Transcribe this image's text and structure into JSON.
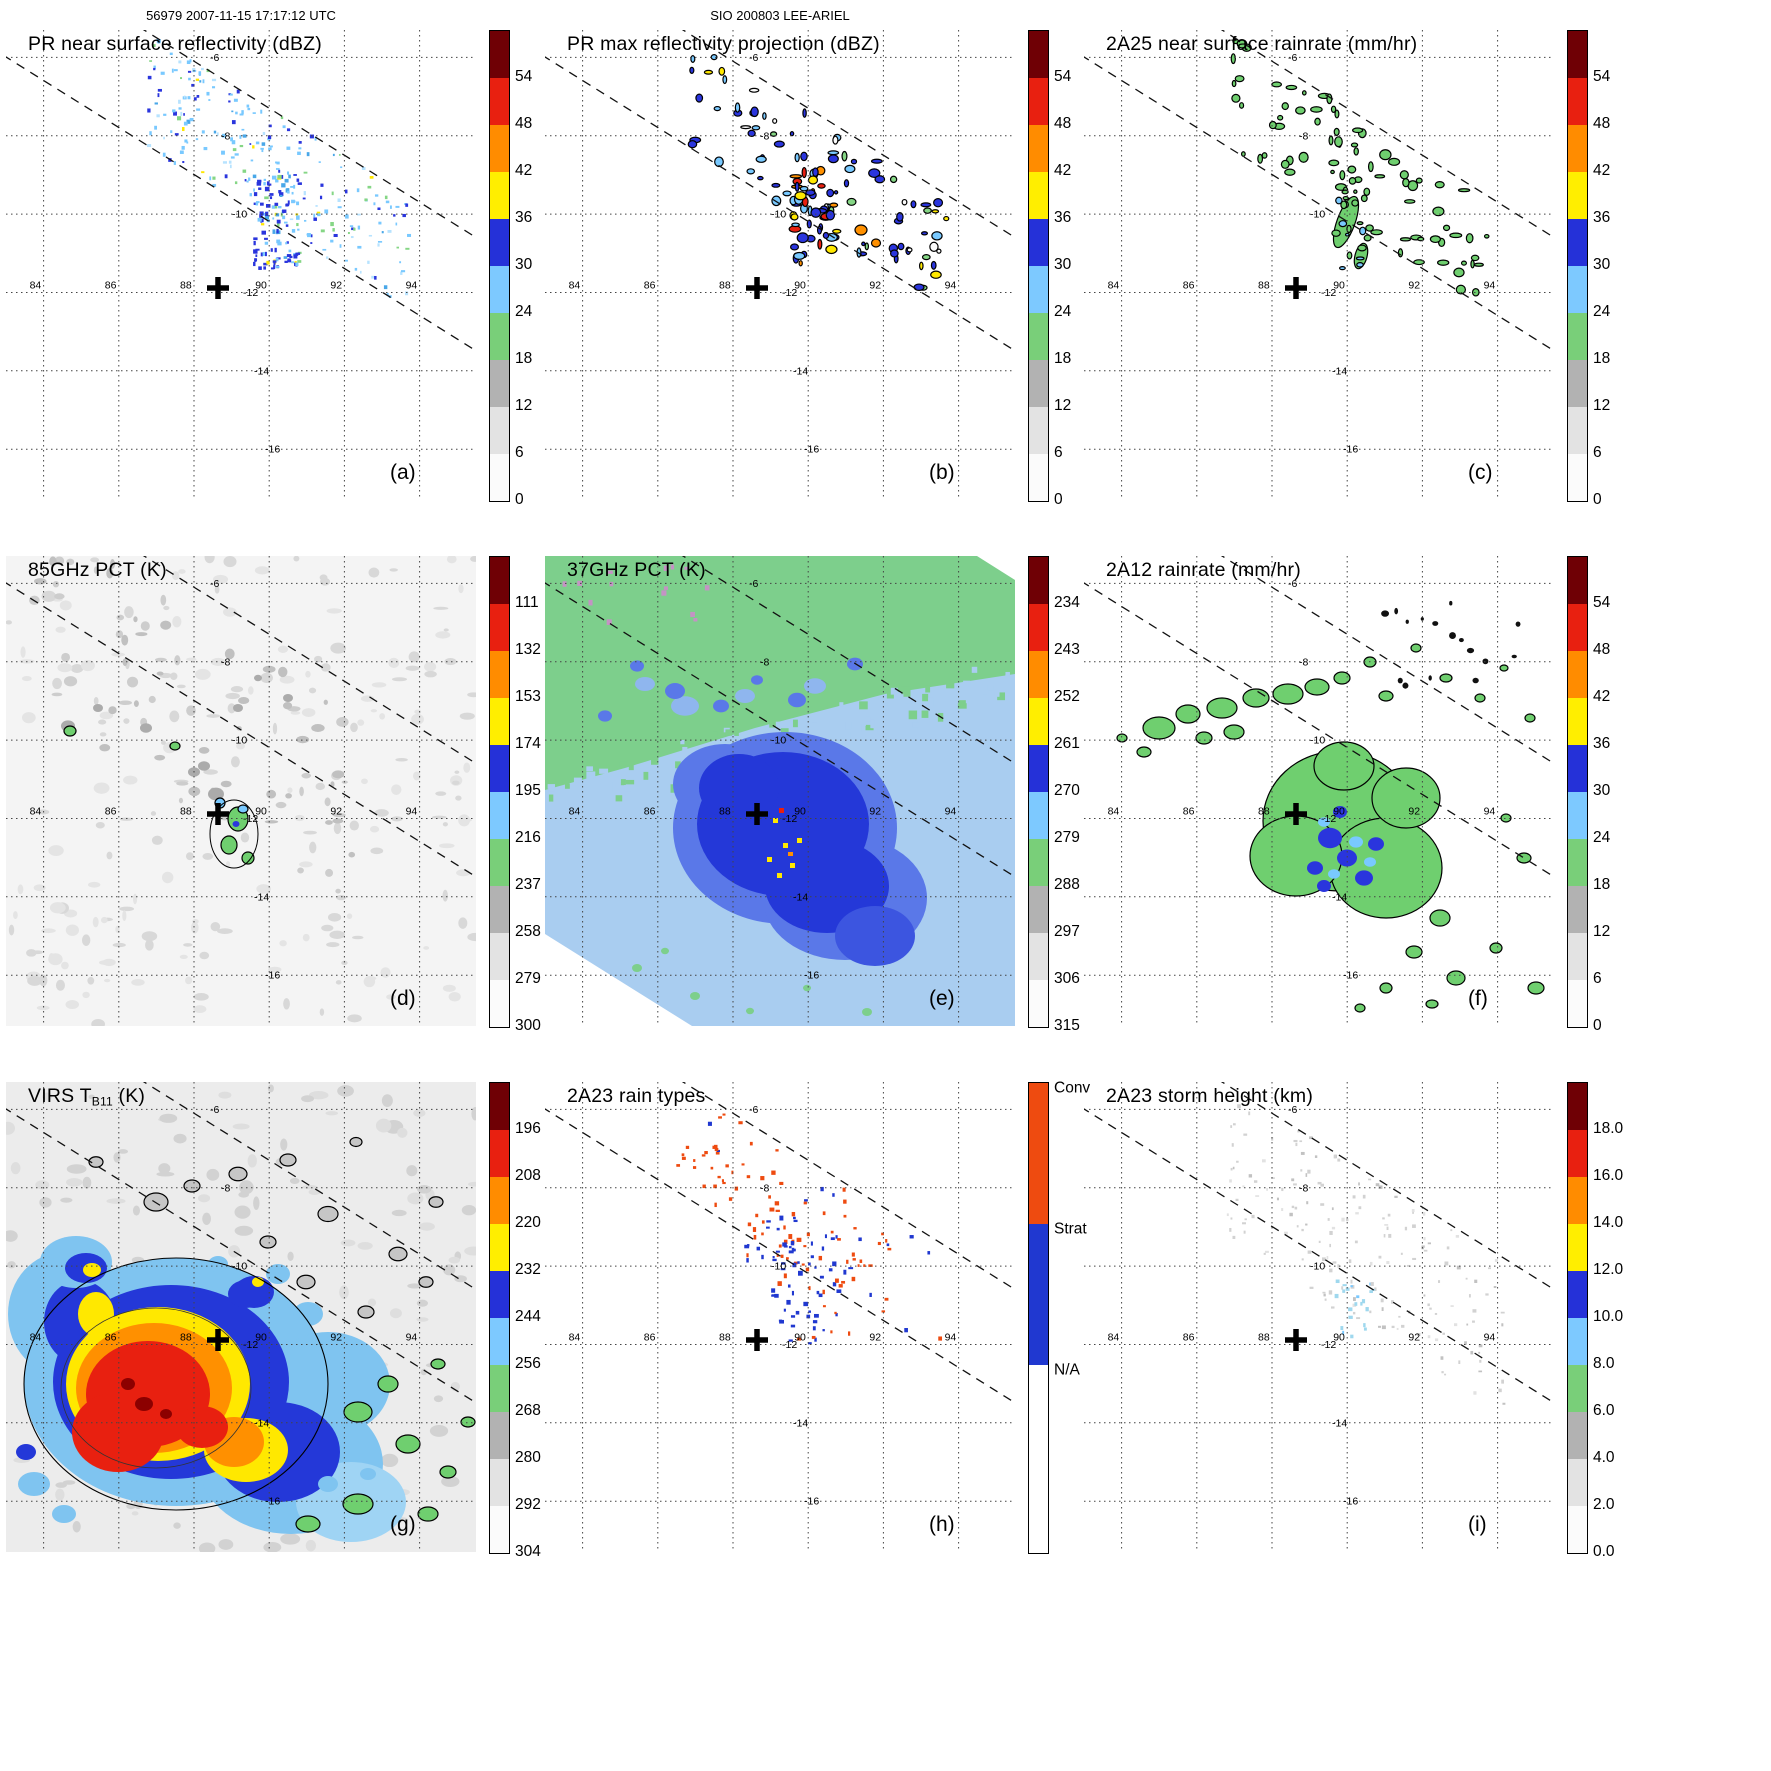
{
  "header": {
    "left": "56979 2007-11-15 17:17:12 UTC",
    "center": "SIO 200803 LEE-ARIEL"
  },
  "grid": {
    "lon_labels": [
      "84",
      "86",
      "88",
      "90",
      "92",
      "94"
    ],
    "lat_labels": [
      "-6",
      "-8",
      "-10",
      "-12",
      "-14",
      "-16"
    ]
  },
  "panels": [
    {
      "letter": "(a)",
      "title": "PR near surface reflectivity (dBZ)"
    },
    {
      "letter": "(b)",
      "title": "PR max reflectivity projection (dBZ)"
    },
    {
      "letter": "(c)",
      "title": "2A25 near surface rainrate (mm/hr)"
    },
    {
      "letter": "(d)",
      "title": "85GHz PCT (K)"
    },
    {
      "letter": "(e)",
      "title": "37GHz PCT (K)"
    },
    {
      "letter": "(f)",
      "title": "2A12 rainrate (mm/hr)"
    },
    {
      "letter": "(g)",
      "title": "VIRS TB11 (K)",
      "title_parts": {
        "pre": "VIRS T",
        "sub": "B11",
        "post": " (K)"
      }
    },
    {
      "letter": "(h)",
      "title": "2A23 rain types"
    },
    {
      "letter": "(i)",
      "title": "2A23 storm height (km)"
    }
  ],
  "colorbars": {
    "scale_colors": [
      "#fbfbfb",
      "#e3e3e3",
      "#b2b2b2",
      "#79cf79",
      "#7dc9ff",
      "#2531d8",
      "#ffee00",
      "#ff8c00",
      "#e82010",
      "#6f0005"
    ],
    "dbz": {
      "kind": "scale",
      "labels": [
        "0",
        "6",
        "12",
        "18",
        "24",
        "30",
        "36",
        "42",
        "48",
        "54"
      ]
    },
    "pct85": {
      "kind": "scale",
      "labels": [
        "300",
        "279",
        "258",
        "237",
        "216",
        "195",
        "174",
        "153",
        "132",
        "111"
      ]
    },
    "pct37": {
      "kind": "scale",
      "labels": [
        "315",
        "306",
        "297",
        "288",
        "279",
        "270",
        "261",
        "252",
        "243",
        "234"
      ]
    },
    "virs": {
      "kind": "scale",
      "labels": [
        "304",
        "292",
        "280",
        "268",
        "256",
        "244",
        "232",
        "220",
        "208",
        "196"
      ]
    },
    "height": {
      "kind": "scale",
      "labels": [
        "0.0",
        "2.0",
        "4.0",
        "6.0",
        "8.0",
        "10.0",
        "12.0",
        "14.0",
        "16.0",
        "18.0"
      ]
    },
    "types": {
      "kind": "types",
      "segments": [
        {
          "label": "Conv",
          "color": "#ee4b10",
          "from": 0.0,
          "to": 0.3
        },
        {
          "label": "Strat",
          "color": "#2038d0",
          "from": 0.3,
          "to": 0.6
        },
        {
          "label": "N/A",
          "color": "#ffffff",
          "from": 0.6,
          "to": 1.0
        }
      ]
    }
  },
  "map_extent": {
    "lon": [
      83.0,
      95.5
    ],
    "lat": [
      -17.3,
      -5.3
    ]
  },
  "storm_center": {
    "lon": 88.6,
    "lat": -11.9
  },
  "chart_data": [
    {
      "panel": "a",
      "type": "heatmap",
      "title": "PR near surface reflectivity (dBZ)",
      "units": "dBZ",
      "colorbar_ticks": [
        0,
        6,
        12,
        18,
        24,
        30,
        36,
        42,
        48,
        54
      ],
      "lon_ticks": [
        84,
        86,
        88,
        90,
        92,
        94
      ],
      "lat_ticks": [
        -6,
        -8,
        -10,
        -12,
        -14,
        -16
      ],
      "summary": "Scattered 18-36 dBZ echoes inside the narrow diagonal PR swath northeast of the storm center; strongest 30-36 dBZ band near 90.5E, 10-11.5S"
    },
    {
      "panel": "b",
      "type": "heatmap",
      "title": "PR max reflectivity projection (dBZ)",
      "units": "dBZ",
      "colorbar_ticks": [
        0,
        6,
        12,
        18,
        24,
        30,
        36,
        42,
        48,
        54
      ],
      "summary": "Black-outlined convective cells 24-48 dBZ along the PR swath; a few 42-48 dBZ cells near 91.5E, 11S"
    },
    {
      "panel": "c",
      "type": "heatmap",
      "title": "2A25 near surface rainrate (mm/hr)",
      "units": "mm/hr",
      "colorbar_ticks": [
        0,
        6,
        12,
        18,
        24,
        30,
        36,
        42,
        48,
        54
      ],
      "summary": "Outlined light-rain cells, mostly below 12 mm/hr, along the PR swath"
    },
    {
      "panel": "d",
      "type": "heatmap",
      "title": "85GHz PCT (K)",
      "units": "K",
      "colorbar_ticks": [
        300,
        279,
        258,
        237,
        216,
        195,
        174,
        153,
        132,
        111
      ],
      "summary": "Mostly warm PCT above 258 K; small ice-scattering cells of 195-237 K just east of the center marker"
    },
    {
      "panel": "e",
      "type": "heatmap",
      "title": "37GHz PCT (K)",
      "units": "K",
      "colorbar_ticks": [
        315,
        306,
        297,
        288,
        279,
        270,
        261,
        252,
        243,
        234
      ],
      "summary": "Green 288-297 K field to the north, light-blue ~279 K elsewhere, deep-blue 261-270 K core around the center with yellow specks near 252 K"
    },
    {
      "panel": "f",
      "type": "heatmap",
      "title": "2A12 rainrate (mm/hr)",
      "units": "mm/hr",
      "colorbar_ticks": [
        0,
        6,
        12,
        18,
        24,
        30,
        36,
        42,
        48,
        54
      ],
      "summary": "Broad outlined light-rain (<6 mm/hr) region arcing over the center with embedded 18-30 mm/hr blue cells"
    },
    {
      "panel": "g",
      "type": "heatmap",
      "title": "VIRS TB11 (K)",
      "units": "K",
      "colorbar_ticks": [
        304,
        292,
        280,
        268,
        256,
        244,
        232,
        220,
        208,
        196
      ],
      "summary": "Large cold cloud shield southwest of center: core below 208 K (red/dark red) ringed by 208-232 K orange/yellow, 232-256 K blue, warmer green/gray outside"
    },
    {
      "panel": "h",
      "type": "categorical",
      "title": "2A23 rain types",
      "categories": [
        "Conv",
        "Strat",
        "N/A"
      ],
      "summary": "Mixed convective (orange) and stratiform (blue) pixels along the PR swath; stratiform clustered near 90-91E, 10-11.5S"
    },
    {
      "panel": "i",
      "type": "heatmap",
      "title": "2A23 storm height (km)",
      "units": "km",
      "colorbar_ticks": [
        0,
        2,
        4,
        6,
        8,
        10,
        12,
        14,
        16,
        18
      ],
      "summary": "Mostly shallow 2-6 km echo tops (gray) along the swath with a few 8-10 km cyan tops near 90.5E, 10.5S"
    }
  ]
}
